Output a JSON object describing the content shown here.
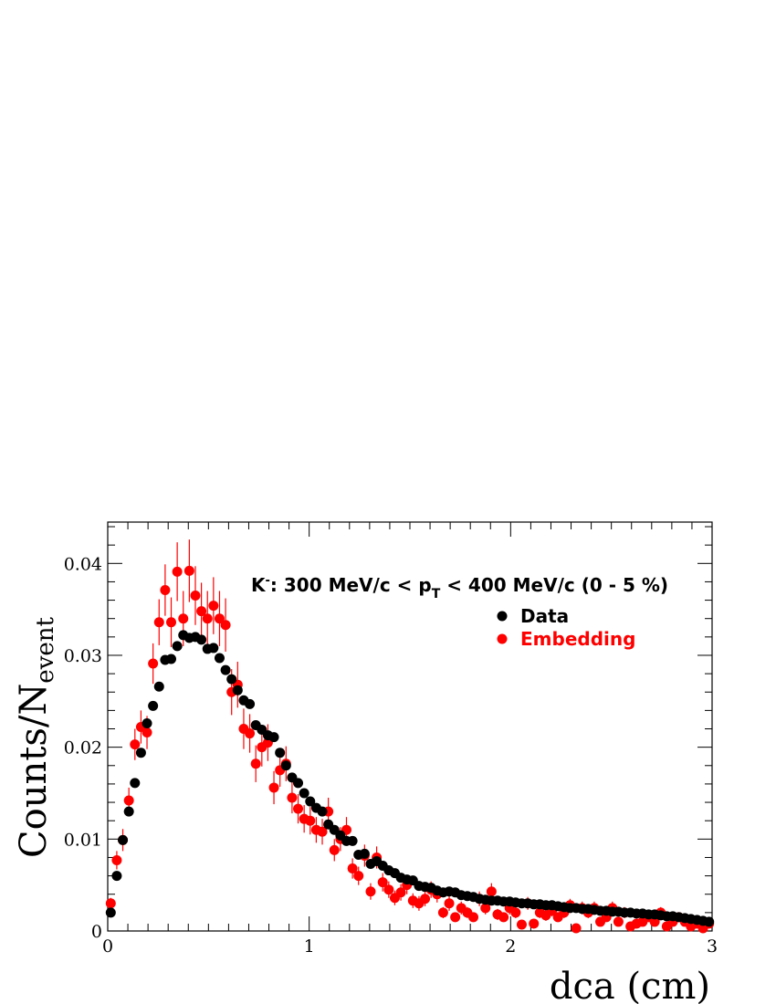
{
  "chart_data": {
    "type": "scatter",
    "xlabel": "dca (cm)",
    "ylabel_main": "Counts/N",
    "ylabel_sub": "event",
    "xlim": [
      0,
      3
    ],
    "ylim": [
      0,
      0.0445
    ],
    "x_ticks": [
      "0",
      "1",
      "2",
      "3"
    ],
    "y_ticks": [
      "0",
      "0.01",
      "0.02",
      "0.03",
      "0.04"
    ],
    "y_tick_values": [
      0,
      0.01,
      0.02,
      0.03,
      0.04
    ],
    "x_tick_values": [
      0,
      1,
      2,
      3
    ],
    "grid": false,
    "legend_position": "top-right",
    "annotation": {
      "particle": "K",
      "charge": "-",
      "text_a": ": 300 MeV/c < p",
      "subscript": "T",
      "text_b": " < 400 MeV/c (0 - 5 %)"
    },
    "series": [
      {
        "name": "Data",
        "color": "#000000",
        "x": [
          0.015,
          0.045,
          0.075,
          0.105,
          0.135,
          0.165,
          0.195,
          0.225,
          0.255,
          0.285,
          0.315,
          0.345,
          0.375,
          0.405,
          0.435,
          0.465,
          0.495,
          0.525,
          0.555,
          0.585,
          0.615,
          0.645,
          0.675,
          0.705,
          0.735,
          0.765,
          0.795,
          0.825,
          0.855,
          0.885,
          0.915,
          0.945,
          0.975,
          1.005,
          1.035,
          1.065,
          1.095,
          1.125,
          1.155,
          1.185,
          1.215,
          1.245,
          1.275,
          1.305,
          1.335,
          1.365,
          1.395,
          1.425,
          1.455,
          1.485,
          1.515,
          1.545,
          1.575,
          1.605,
          1.635,
          1.665,
          1.695,
          1.725,
          1.755,
          1.785,
          1.815,
          1.845,
          1.875,
          1.905,
          1.935,
          1.965,
          1.995,
          2.025,
          2.055,
          2.085,
          2.115,
          2.145,
          2.175,
          2.205,
          2.235,
          2.265,
          2.295,
          2.325,
          2.355,
          2.385,
          2.415,
          2.445,
          2.475,
          2.505,
          2.535,
          2.565,
          2.595,
          2.625,
          2.655,
          2.685,
          2.715,
          2.745,
          2.775,
          2.805,
          2.835,
          2.865,
          2.895,
          2.925,
          2.955,
          2.985
        ],
        "y": [
          0.002,
          0.006,
          0.0099,
          0.013,
          0.0161,
          0.0194,
          0.0226,
          0.0245,
          0.0266,
          0.0295,
          0.0296,
          0.031,
          0.0322,
          0.0319,
          0.032,
          0.0317,
          0.0307,
          0.0308,
          0.0297,
          0.0284,
          0.0274,
          0.0262,
          0.0251,
          0.0247,
          0.0224,
          0.0219,
          0.0213,
          0.0211,
          0.0194,
          0.018,
          0.0167,
          0.0161,
          0.015,
          0.0141,
          0.0134,
          0.013,
          0.0116,
          0.011,
          0.0104,
          0.0098,
          0.0098,
          0.0083,
          0.0084,
          0.0073,
          0.0076,
          0.0071,
          0.0066,
          0.0063,
          0.0058,
          0.0056,
          0.0055,
          0.0049,
          0.0048,
          0.0047,
          0.0044,
          0.0042,
          0.0043,
          0.0042,
          0.0039,
          0.0038,
          0.0037,
          0.0035,
          0.0034,
          0.0033,
          0.0033,
          0.0032,
          0.0032,
          0.0031,
          0.003,
          0.003,
          0.0029,
          0.0029,
          0.0028,
          0.0028,
          0.0027,
          0.0026,
          0.0025,
          0.0025,
          0.0024,
          0.0024,
          0.0023,
          0.0022,
          0.0022,
          0.0021,
          0.0021,
          0.002,
          0.002,
          0.0019,
          0.0019,
          0.0018,
          0.0018,
          0.0017,
          0.0016,
          0.0016,
          0.0015,
          0.0014,
          0.0013,
          0.0012,
          0.0011,
          0.001
        ],
        "err": [
          0,
          0,
          0,
          0,
          0,
          0,
          0,
          0,
          0,
          0,
          0,
          0,
          0,
          0,
          0,
          0,
          0,
          0,
          0,
          0,
          0,
          0,
          0,
          0,
          0,
          0,
          0,
          0,
          0,
          0,
          0,
          0,
          0,
          0,
          0,
          0,
          0,
          0,
          0,
          0,
          0,
          0,
          0,
          0,
          0,
          0,
          0,
          0,
          0,
          0,
          0,
          0,
          0,
          0,
          0,
          0,
          0,
          0,
          0,
          0,
          0,
          0,
          0,
          0,
          0,
          0,
          0,
          0,
          0,
          0,
          0,
          0,
          0,
          0,
          0,
          0,
          0,
          0,
          0,
          0,
          0,
          0,
          0,
          0,
          0,
          0,
          0,
          0,
          0,
          0,
          0,
          0,
          0,
          0,
          0,
          0,
          0,
          0,
          0,
          0
        ]
      },
      {
        "name": "Embedding",
        "color": "#ff0000",
        "x": [
          0.015,
          0.045,
          0.075,
          0.105,
          0.135,
          0.165,
          0.195,
          0.225,
          0.255,
          0.285,
          0.315,
          0.345,
          0.375,
          0.405,
          0.435,
          0.465,
          0.495,
          0.525,
          0.555,
          0.585,
          0.615,
          0.645,
          0.675,
          0.705,
          0.735,
          0.765,
          0.795,
          0.825,
          0.855,
          0.885,
          0.915,
          0.945,
          0.975,
          1.005,
          1.035,
          1.065,
          1.095,
          1.125,
          1.155,
          1.185,
          1.215,
          1.245,
          1.275,
          1.305,
          1.335,
          1.365,
          1.395,
          1.425,
          1.455,
          1.485,
          1.515,
          1.545,
          1.575,
          1.605,
          1.635,
          1.665,
          1.695,
          1.725,
          1.755,
          1.785,
          1.815,
          1.845,
          1.875,
          1.905,
          1.935,
          1.965,
          1.995,
          2.025,
          2.055,
          2.085,
          2.115,
          2.145,
          2.175,
          2.205,
          2.235,
          2.265,
          2.295,
          2.325,
          2.355,
          2.385,
          2.415,
          2.445,
          2.475,
          2.505,
          2.535,
          2.565,
          2.595,
          2.625,
          2.655,
          2.685,
          2.715,
          2.745,
          2.775,
          2.805,
          2.835,
          2.865,
          2.895,
          2.925,
          2.955,
          2.985
        ],
        "y": [
          0.003,
          0.0077,
          0.0099,
          0.0142,
          0.0203,
          0.0222,
          0.0216,
          0.0291,
          0.0336,
          0.0371,
          0.0336,
          0.0391,
          0.034,
          0.0392,
          0.0365,
          0.0348,
          0.034,
          0.0354,
          0.034,
          0.0333,
          0.026,
          0.0268,
          0.022,
          0.0215,
          0.0182,
          0.02,
          0.0205,
          0.0156,
          0.0175,
          0.0182,
          0.0145,
          0.0133,
          0.0122,
          0.012,
          0.011,
          0.0108,
          0.013,
          0.0088,
          0.01,
          0.011,
          0.0068,
          0.006,
          0.0082,
          0.0043,
          0.008,
          0.0053,
          0.0045,
          0.0036,
          0.0042,
          0.005,
          0.0033,
          0.003,
          0.0035,
          0.0045,
          0.004,
          0.002,
          0.003,
          0.0015,
          0.0025,
          0.002,
          0.0015,
          0.0035,
          0.0025,
          0.0043,
          0.0018,
          0.0015,
          0.0025,
          0.002,
          0.0007,
          0.003,
          0.0008,
          0.002,
          0.0017,
          0.0022,
          0.0015,
          0.002,
          0.0028,
          0.0003,
          0.0025,
          0.002,
          0.0025,
          0.001,
          0.0015,
          0.0025,
          0.001,
          0.002,
          0.0005,
          0.0008,
          0.001,
          0.0015,
          0.001,
          0.002,
          0.0005,
          0.001,
          0.0015,
          0.001,
          0.0005,
          0.0008,
          0.0003,
          0.0008
        ],
        "err": [
          0.0006,
          0.001,
          0.0012,
          0.0014,
          0.0017,
          0.0018,
          0.0018,
          0.0022,
          0.0025,
          0.0028,
          0.0027,
          0.0032,
          0.003,
          0.0034,
          0.0032,
          0.0031,
          0.003,
          0.0031,
          0.003,
          0.0029,
          0.0025,
          0.0025,
          0.0022,
          0.0021,
          0.002,
          0.0021,
          0.002,
          0.0018,
          0.0018,
          0.0019,
          0.0017,
          0.0016,
          0.0015,
          0.0015,
          0.0014,
          0.0014,
          0.0015,
          0.0012,
          0.0013,
          0.0014,
          0.0011,
          0.001,
          0.0012,
          0.0009,
          0.0012,
          0.001,
          0.0009,
          0.0008,
          0.0009,
          0.001,
          0.0008,
          0.0008,
          0.0008,
          0.0009,
          0.0009,
          0.0006,
          0.0008,
          0.0005,
          0.0007,
          0.0006,
          0.0005,
          0.0008,
          0.0007,
          0.0009,
          0.0006,
          0.0005,
          0.0007,
          0.0006,
          0.0004,
          0.0007,
          0.0004,
          0.0006,
          0.0006,
          0.0006,
          0.0005,
          0.0006,
          0.0007,
          0.0003,
          0.0007,
          0.0006,
          0.0007,
          0.0004,
          0.0005,
          0.0007,
          0.0004,
          0.0006,
          0.0003,
          0.0004,
          0.0004,
          0.0005,
          0.0004,
          0.0006,
          0.0003,
          0.0004,
          0.0005,
          0.0004,
          0.0003,
          0.0004,
          0.0002,
          0.0004
        ]
      }
    ]
  }
}
